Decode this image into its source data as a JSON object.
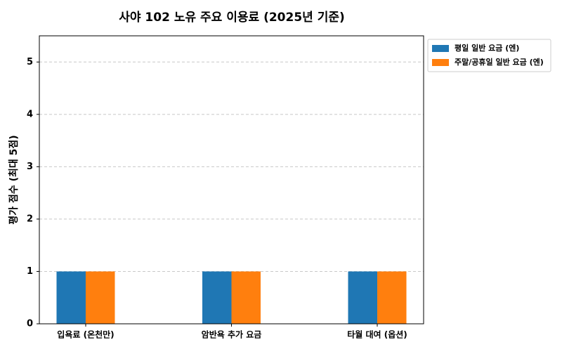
{
  "chart_data": {
    "type": "bar",
    "title": "사야 102 노유 주요 이용료 (2025년 기준)",
    "y_label": "평가 점수 (최대 5점)",
    "categories": [
      "입욕료 (온천만)",
      "암반욕 추가 요금",
      "타월 대여 (옵션)"
    ],
    "series": [
      {
        "name": "평일 일반 요금 (엔)",
        "color": "#1f77b4",
        "values": [
          1,
          1,
          1
        ]
      },
      {
        "name": "주말/공휴일 일반 요금 (엔)",
        "color": "#ff7f0e",
        "values": [
          1,
          1,
          1
        ]
      }
    ],
    "ylim": [
      0,
      5.5
    ],
    "yticks": [
      0,
      1,
      2,
      3,
      4,
      5
    ],
    "grid": true,
    "legend": "outside upper right"
  }
}
